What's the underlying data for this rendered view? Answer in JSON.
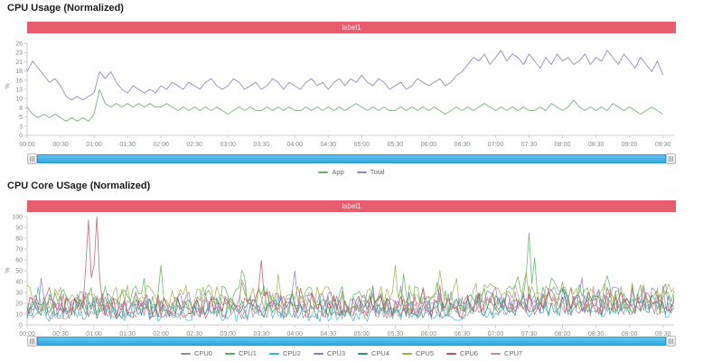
{
  "colors": {
    "banner": "#e85d6d",
    "banner_text": "#fde7ea",
    "axis_line": "#cccccc",
    "tick_text": "#8a8a8a",
    "scrollbar_fill": "#3fb0e8",
    "handle_border": "#bdbdbd",
    "legend_text": "#666666",
    "background": "#ffffff"
  },
  "chart_data": [
    {
      "type": "line",
      "title": "CPU Usage (Normalized)",
      "banner_label": "label1",
      "ylabel": "%",
      "ylim": [
        0,
        26
      ],
      "grid": false,
      "legend_position": "bottom-center",
      "y_tick_labels_top_down": [
        "26",
        "23",
        "21",
        "18",
        "16",
        "13",
        "10",
        "8",
        "5",
        "3",
        "0"
      ],
      "x_tick_labels": [
        "00:00",
        "00:30",
        "01:00",
        "01:30",
        "02:00",
        "02:30",
        "03:00",
        "03:30",
        "04:00",
        "04:30",
        "05:00",
        "05:30",
        "06:00",
        "06:30",
        "07:00",
        "07:30",
        "08:00",
        "08:30",
        "09:00",
        "09:30"
      ],
      "x_tick_step_minutes": 30,
      "x_max_minutes": 580,
      "sample_step_minutes": 5,
      "series": [
        {
          "name": "App",
          "color": "#6fae70",
          "values": [
            8,
            6,
            5,
            6,
            5,
            6,
            5,
            4,
            5,
            4,
            5,
            4,
            6,
            13,
            9,
            8,
            9,
            8,
            9,
            8,
            9,
            8,
            9,
            8,
            8,
            9,
            8,
            7,
            8,
            7,
            8,
            7,
            8,
            7,
            8,
            7,
            6,
            7,
            8,
            7,
            8,
            7,
            7,
            8,
            7,
            8,
            7,
            8,
            7,
            7,
            8,
            7,
            8,
            7,
            8,
            7,
            8,
            7,
            8,
            9,
            8,
            7,
            8,
            7,
            8,
            7,
            7,
            8,
            7,
            8,
            7,
            8,
            7,
            8,
            7,
            6,
            7,
            8,
            7,
            8,
            7,
            8,
            9,
            8,
            7,
            8,
            7,
            8,
            7,
            8,
            7,
            7,
            8,
            7,
            9,
            8,
            7,
            8,
            10,
            8,
            7,
            8,
            7,
            8,
            7,
            9,
            8,
            7,
            8,
            7,
            6,
            7,
            8,
            7,
            6
          ]
        },
        {
          "name": "Total",
          "color": "#8d85b8",
          "values": [
            18,
            21,
            19,
            17,
            15,
            16,
            14,
            11,
            10,
            11,
            10,
            11,
            12,
            18,
            16,
            18,
            15,
            13,
            12,
            14,
            13,
            12,
            13,
            12,
            14,
            13,
            15,
            14,
            13,
            15,
            14,
            13,
            15,
            16,
            14,
            13,
            14,
            16,
            15,
            13,
            14,
            15,
            13,
            14,
            16,
            15,
            13,
            15,
            14,
            13,
            15,
            16,
            14,
            15,
            13,
            15,
            16,
            14,
            16,
            15,
            17,
            15,
            14,
            16,
            15,
            13,
            14,
            15,
            13,
            14,
            16,
            15,
            14,
            15,
            16,
            14,
            15,
            17,
            18,
            20,
            22,
            21,
            23,
            20,
            22,
            24,
            21,
            23,
            22,
            20,
            23,
            21,
            19,
            22,
            20,
            23,
            21,
            22,
            20,
            21,
            23,
            20,
            22,
            21,
            24,
            22,
            20,
            23,
            21,
            19,
            22,
            20,
            18,
            21,
            17
          ]
        }
      ]
    },
    {
      "type": "line",
      "title": "CPU Core USage (Normalized)",
      "banner_label": "label1",
      "ylabel": "%",
      "ylim": [
        0,
        100
      ],
      "grid": false,
      "legend_position": "bottom-center",
      "y_tick_labels_top_down": [
        "100",
        "90",
        "80",
        "70",
        "60",
        "50",
        "40",
        "30",
        "20",
        "10",
        "0"
      ],
      "x_tick_labels": [
        "00:00",
        "00:30",
        "01:00",
        "01:30",
        "02:00",
        "02:30",
        "03:00",
        "03:30",
        "04:00",
        "04:30",
        "05:00",
        "05:30",
        "06:00",
        "06:30",
        "07:00",
        "07:30",
        "08:00",
        "08:30",
        "09:00",
        "09:30"
      ],
      "x_tick_step_minutes": 30,
      "x_max_minutes": 580,
      "sample_step_minutes": 2.5,
      "series": [
        {
          "name": "CPU0",
          "color": "#8a8f94",
          "baseline": 16,
          "baseline_late": 20,
          "noise_amplitude": 11,
          "seed": 101,
          "spikes": []
        },
        {
          "name": "CPU1",
          "color": "#58b058",
          "baseline": 22,
          "baseline_late": 24,
          "noise_amplitude": 14,
          "seed": 202,
          "spikes": [
            [
              120,
              55
            ],
            [
              450,
              85
            ],
            [
              456,
              62
            ]
          ]
        },
        {
          "name": "CPU2",
          "color": "#3fb6c9",
          "baseline": 11,
          "baseline_late": 14,
          "noise_amplitude": 8,
          "seed": 303,
          "spikes": [
            [
              10,
              35
            ]
          ]
        },
        {
          "name": "CPU3",
          "color": "#9378b5",
          "baseline": 19,
          "baseline_late": 23,
          "noise_amplitude": 12,
          "seed": 404,
          "spikes": [
            [
              240,
              50
            ]
          ]
        },
        {
          "name": "CPU4",
          "color": "#3a8f7c",
          "baseline": 15,
          "baseline_late": 18,
          "noise_amplitude": 10,
          "seed": 505,
          "spikes": []
        },
        {
          "name": "CPU5",
          "color": "#a0a84e",
          "baseline": 24,
          "baseline_late": 26,
          "noise_amplitude": 13,
          "seed": 606,
          "spikes": [
            [
              330,
              55
            ]
          ]
        },
        {
          "name": "CPU6",
          "color": "#b8515d",
          "baseline": 17,
          "baseline_late": 20,
          "noise_amplitude": 11,
          "seed": 707,
          "spikes": [
            [
              55,
              97
            ],
            [
              62,
              100
            ],
            [
              210,
              60
            ]
          ]
        },
        {
          "name": "CPU7",
          "color": "#c08ba0",
          "baseline": 14,
          "baseline_late": 17,
          "noise_amplitude": 9,
          "seed": 808,
          "spikes": []
        }
      ]
    }
  ]
}
